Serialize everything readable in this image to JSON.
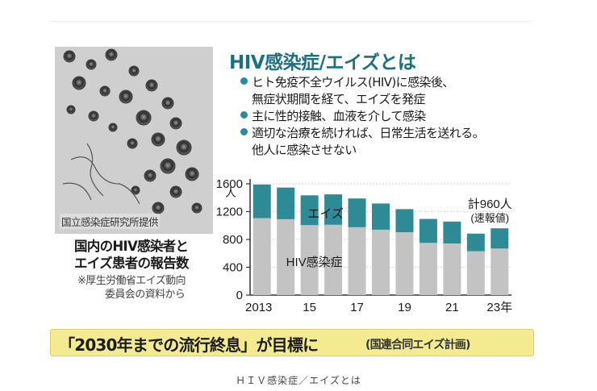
{
  "figure": {
    "headline": "HIV感染症/エイズとは",
    "photo_credit": "国立感染症研究所提供",
    "bullets": [
      {
        "line1": "ヒト免疫不全ウイルス(HIV)に感染後、",
        "line2": "無症状期間を経て、エイズを発症"
      },
      {
        "line1": "主に性的接触、血液を介して感染",
        "line2": ""
      },
      {
        "line1": "適切な治療を続ければ、日常生活を送れる。",
        "line2": "他人に感染させない"
      }
    ],
    "chart_title": [
      "国内のHIV感染者と",
      "エイズ患者の報告数"
    ],
    "chart_source": [
      "※厚生労働省エイズ動向",
      "委員会の資料から"
    ],
    "banner": {
      "main": "「2030年までの流行終息」が目標に",
      "sub": "(国連合同エイズ計画)"
    }
  },
  "chart_data": {
    "type": "bar",
    "stacked": true,
    "years": [
      2013,
      2014,
      2015,
      2016,
      2017,
      2018,
      2019,
      2020,
      2021,
      2022,
      2023
    ],
    "series": [
      {
        "name": "HIV感染症",
        "color": "#c3c3c3",
        "values": [
          1106,
          1091,
          1006,
          1011,
          976,
          940,
          903,
          750,
          742,
          632,
          669
        ]
      },
      {
        "name": "エイズ",
        "color": "#2e8a95",
        "values": [
          484,
          455,
          428,
          437,
          413,
          377,
          333,
          345,
          315,
          252,
          291
        ]
      }
    ],
    "y_ticks": [
      0,
      400,
      800,
      1200,
      1600
    ],
    "y_axis_range": [
      0,
      1600
    ],
    "y_unit_label": "人",
    "x_tick_labels": [
      "2013",
      "15",
      "17",
      "19",
      "21",
      "23年"
    ],
    "series_labels": {
      "aids": "エイズ",
      "hiv": "HIV感染症"
    },
    "annotation": {
      "line1": "計960人",
      "line2": "(速報値)"
    }
  },
  "caption": "ＨＩＶ感染症／エイズとは"
}
